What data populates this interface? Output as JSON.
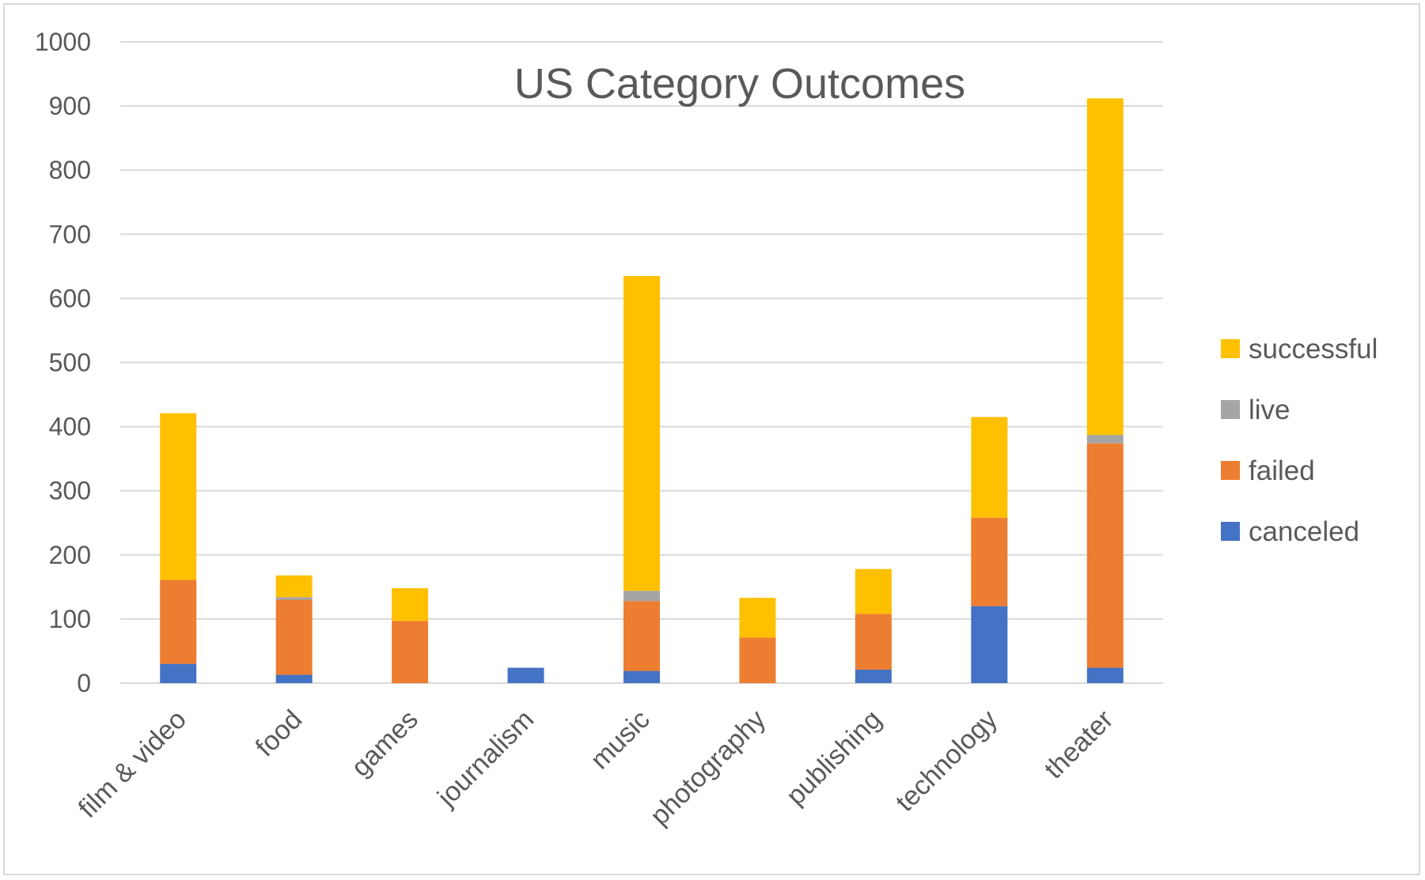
{
  "chart_data": {
    "type": "bar",
    "stacked": true,
    "title": "US Category Outcomes",
    "xlabel": "",
    "ylabel": "",
    "ylim": [
      0,
      1000
    ],
    "yticks": [
      0,
      100,
      200,
      300,
      400,
      500,
      600,
      700,
      800,
      900,
      1000
    ],
    "grid": true,
    "legend_position": "right",
    "categories": [
      "film & video",
      "food",
      "games",
      "journalism",
      "music",
      "photography",
      "publishing",
      "technology",
      "theater"
    ],
    "series": [
      {
        "name": "canceled",
        "color": "#4472C4",
        "values": [
          30,
          13,
          0,
          24,
          19,
          0,
          21,
          120,
          24
        ]
      },
      {
        "name": "failed",
        "color": "#ED7D31",
        "values": [
          131,
          117,
          97,
          0,
          109,
          71,
          87,
          138,
          350
        ]
      },
      {
        "name": "live",
        "color": "#A5A5A5",
        "values": [
          0,
          4,
          0,
          0,
          16,
          0,
          0,
          0,
          13
        ]
      },
      {
        "name": "successful",
        "color": "#FFC000",
        "values": [
          260,
          34,
          51,
          0,
          491,
          62,
          70,
          157,
          525
        ]
      }
    ]
  }
}
